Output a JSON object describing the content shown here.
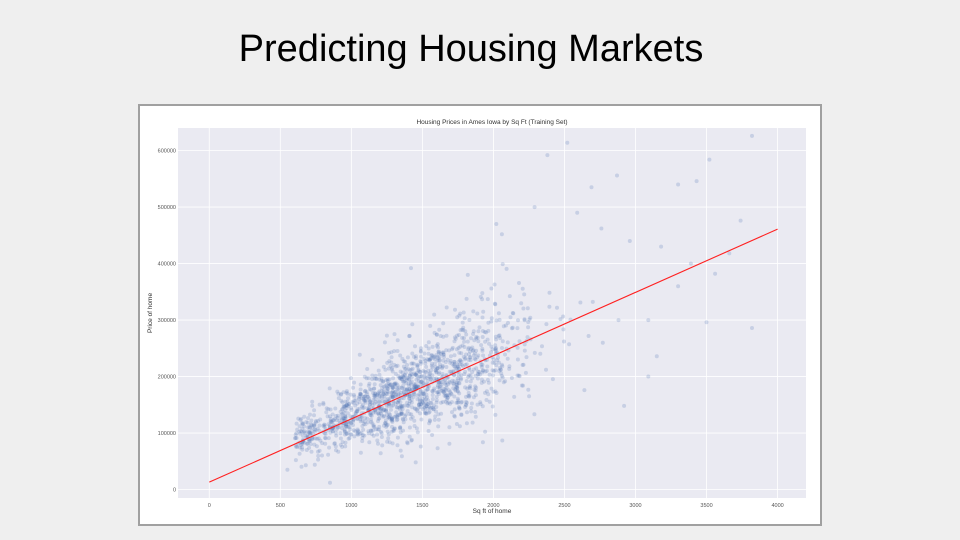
{
  "slide": {
    "title": "Predicting Housing Markets"
  },
  "chart_data": {
    "type": "scatter",
    "title": "Housing Prices in Ames Iowa by Sq Ft (Training Set)",
    "xlabel": "Sq ft of home",
    "ylabel": "Price of home",
    "xlim": [
      -220,
      4200
    ],
    "ylim": [
      -15000,
      640000
    ],
    "x_ticks": [
      0,
      500,
      1000,
      1500,
      2000,
      2500,
      3000,
      3500,
      4000
    ],
    "y_ticks": [
      0,
      100000,
      200000,
      300000,
      400000,
      500000,
      600000
    ],
    "grid": true,
    "colors": {
      "plot_background": "#eaeaf2",
      "grid": "#ffffff",
      "points": "#4c72b0",
      "regression_line": "#ff2020"
    },
    "regression_line": {
      "x": [
        0,
        4000
      ],
      "y": [
        13000,
        461000
      ]
    },
    "points_summary": {
      "count": 1460,
      "x_center": 1400,
      "x_spread": 420,
      "y_per_sqft": 108,
      "y_intercept": 22000,
      "y_noise": 0.22
    },
    "highlight_points": [
      {
        "x": 3820,
        "y": 626000
      },
      {
        "x": 3520,
        "y": 584000
      },
      {
        "x": 2380,
        "y": 592000
      },
      {
        "x": 2520,
        "y": 614000
      },
      {
        "x": 3300,
        "y": 540000
      },
      {
        "x": 2870,
        "y": 556000
      },
      {
        "x": 2690,
        "y": 535000
      },
      {
        "x": 3430,
        "y": 546000
      },
      {
        "x": 2290,
        "y": 500000
      },
      {
        "x": 2590,
        "y": 490000
      },
      {
        "x": 3740,
        "y": 476000
      },
      {
        "x": 2760,
        "y": 462000
      },
      {
        "x": 3180,
        "y": 430000
      },
      {
        "x": 3660,
        "y": 418000
      },
      {
        "x": 3820,
        "y": 286000
      },
      {
        "x": 3500,
        "y": 296000
      },
      {
        "x": 3090,
        "y": 200000
      },
      {
        "x": 3090,
        "y": 300000
      },
      {
        "x": 3150,
        "y": 236000
      },
      {
        "x": 2920,
        "y": 148000
      },
      {
        "x": 2770,
        "y": 260000
      },
      {
        "x": 2640,
        "y": 176000
      },
      {
        "x": 2880,
        "y": 300000
      },
      {
        "x": 1420,
        "y": 392000
      },
      {
        "x": 550,
        "y": 35000
      },
      {
        "x": 850,
        "y": 12000
      },
      {
        "x": 1820,
        "y": 380000
      },
      {
        "x": 2060,
        "y": 452000
      },
      {
        "x": 2020,
        "y": 470000
      },
      {
        "x": 2960,
        "y": 440000
      },
      {
        "x": 3560,
        "y": 382000
      },
      {
        "x": 3390,
        "y": 400000
      },
      {
        "x": 3300,
        "y": 360000
      }
    ]
  }
}
